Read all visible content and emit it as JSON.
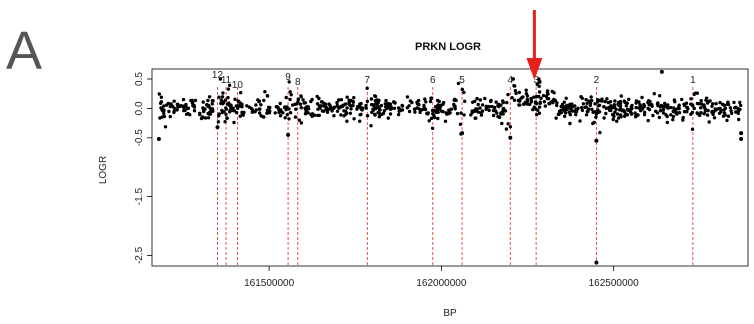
{
  "panel_label": "A",
  "chart_data": {
    "type": "scatter",
    "title": "PRKN LOGR",
    "xlabel": "BP",
    "ylabel": "LOGR",
    "xlim": [
      161160000,
      162890000
    ],
    "ylim": [
      -2.68,
      0.67
    ],
    "x_ticks": [
      161500000,
      162000000,
      162500000
    ],
    "x_tick_labels": [
      "161500000",
      "162000000",
      "162500000"
    ],
    "y_ticks": [
      0.5,
      0.0,
      -0.5,
      -1.5,
      -2.5
    ],
    "y_tick_labels": [
      "0.5",
      "0.0",
      "-0.5",
      "-1.5",
      "-2.5"
    ],
    "grid": false,
    "point_color": "#000000",
    "marker_line_color": "#e0403a",
    "arrow_color": "#e8201c",
    "arrow_target_bp": 162270000,
    "exon_markers": [
      {
        "label": "12",
        "bp": 161350000
      },
      {
        "label": "11",
        "bp": 161375000
      },
      {
        "label": "10",
        "bp": 161408000
      },
      {
        "label": "9",
        "bp": 161555000
      },
      {
        "label": "8",
        "bp": 161583000
      },
      {
        "label": "7",
        "bp": 161785000
      },
      {
        "label": "6",
        "bp": 161975000
      },
      {
        "label": "5",
        "bp": 162060000
      },
      {
        "label": "4",
        "bp": 162200000
      },
      {
        "label": "3",
        "bp": 162275000
      },
      {
        "label": "2",
        "bp": 162450000
      },
      {
        "label": "1",
        "bp": 162730000
      }
    ],
    "outliers": [
      {
        "x": 162450000,
        "y": -2.62
      },
      {
        "x": 162640000,
        "y": 0.62
      },
      {
        "x": 161350000,
        "y": -0.32
      },
      {
        "x": 162450000,
        "y": -0.55
      },
      {
        "x": 161180000,
        "y": -0.52
      },
      {
        "x": 162870000,
        "y": -0.52
      },
      {
        "x": 162200000,
        "y": -0.5
      },
      {
        "x": 162060000,
        "y": -0.42
      },
      {
        "x": 161555000,
        "y": -0.45
      },
      {
        "x": 162870000,
        "y": -0.42
      },
      {
        "x": 162285000,
        "y": 0.45
      }
    ]
  }
}
